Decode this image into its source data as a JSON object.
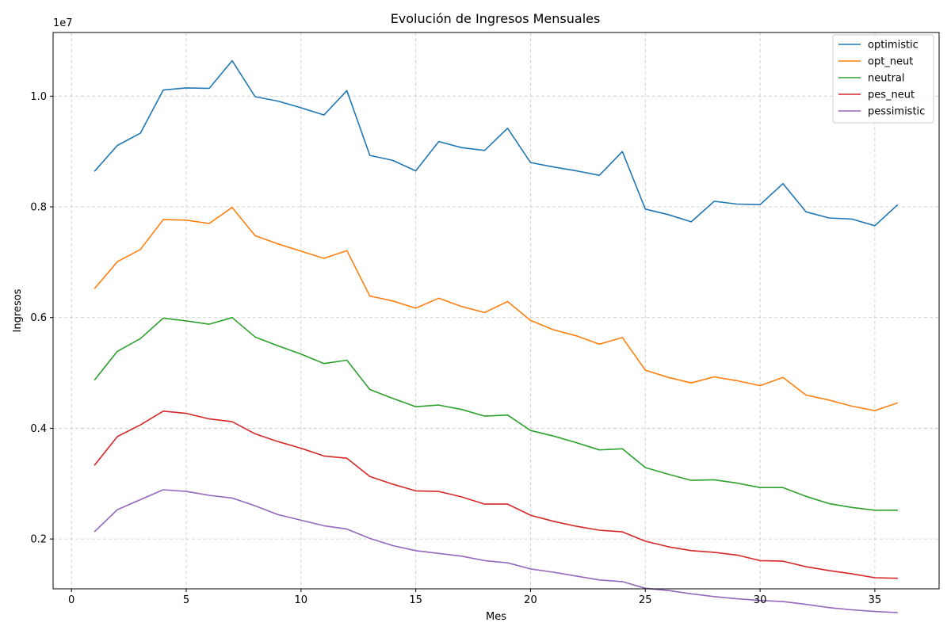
{
  "chart_data": {
    "type": "line",
    "title": "Evolución de Ingresos Mensuales",
    "xlabel": "Mes",
    "ylabel": "Ingresos",
    "y_offset_label": "1e7",
    "xlim": [
      -0.8,
      37.8
    ],
    "ylim": [
      1100000,
      11150000
    ],
    "xticks": [
      0,
      5,
      10,
      15,
      20,
      25,
      30,
      35
    ],
    "yticks": [
      2000000,
      4000000,
      6000000,
      8000000,
      10000000
    ],
    "ytick_labels": [
      "0.2",
      "0.4",
      "0.6",
      "0.8",
      "1.0"
    ],
    "grid": true,
    "legend_position": "top-right",
    "x": [
      1,
      2,
      3,
      4,
      5,
      6,
      7,
      8,
      9,
      10,
      11,
      12,
      13,
      14,
      15,
      16,
      17,
      18,
      19,
      20,
      21,
      22,
      23,
      24,
      25,
      26,
      27,
      28,
      29,
      30,
      31,
      32,
      33,
      34,
      35,
      36
    ],
    "series": [
      {
        "name": "optimistic",
        "color": "#1f77b4",
        "values": [
          8640000,
          9110000,
          9330000,
          10110000,
          10150000,
          10140000,
          10640000,
          9990000,
          9910000,
          9790000,
          9660000,
          10100000,
          8930000,
          8840000,
          8650000,
          9180000,
          9070000,
          9020000,
          9420000,
          8800000,
          8720000,
          8650000,
          8570000,
          9000000,
          7960000,
          7860000,
          7730000,
          8100000,
          8050000,
          8040000,
          8420000,
          7910000,
          7800000,
          7780000,
          7660000,
          8040000
        ]
      },
      {
        "name": "opt_neut",
        "color": "#ff7f0e",
        "values": [
          6520000,
          7010000,
          7230000,
          7770000,
          7760000,
          7700000,
          7990000,
          7480000,
          7330000,
          7200000,
          7070000,
          7210000,
          6390000,
          6300000,
          6170000,
          6350000,
          6200000,
          6090000,
          6290000,
          5950000,
          5780000,
          5670000,
          5520000,
          5640000,
          5050000,
          4920000,
          4820000,
          4930000,
          4860000,
          4770000,
          4920000,
          4600000,
          4510000,
          4400000,
          4320000,
          4460000
        ]
      },
      {
        "name": "neutral",
        "color": "#2ca02c",
        "values": [
          4870000,
          5390000,
          5620000,
          5990000,
          5940000,
          5880000,
          6000000,
          5650000,
          5490000,
          5340000,
          5170000,
          5230000,
          4700000,
          4540000,
          4390000,
          4420000,
          4340000,
          4220000,
          4240000,
          3960000,
          3860000,
          3740000,
          3610000,
          3630000,
          3290000,
          3170000,
          3060000,
          3070000,
          3010000,
          2930000,
          2930000,
          2770000,
          2640000,
          2570000,
          2520000,
          2520000
        ]
      },
      {
        "name": "pes_neut",
        "color": "#d62728",
        "values": [
          3330000,
          3850000,
          4060000,
          4310000,
          4270000,
          4170000,
          4120000,
          3900000,
          3760000,
          3640000,
          3500000,
          3460000,
          3130000,
          2990000,
          2870000,
          2860000,
          2760000,
          2630000,
          2630000,
          2430000,
          2320000,
          2230000,
          2160000,
          2130000,
          1960000,
          1860000,
          1790000,
          1760000,
          1710000,
          1610000,
          1600000,
          1500000,
          1430000,
          1370000,
          1300000,
          1290000
        ]
      },
      {
        "name": "pessimistic",
        "color": "#9467bd",
        "values": [
          2130000,
          2530000,
          2710000,
          2890000,
          2860000,
          2790000,
          2740000,
          2600000,
          2440000,
          2340000,
          2240000,
          2180000,
          2010000,
          1880000,
          1790000,
          1740000,
          1690000,
          1610000,
          1570000,
          1460000,
          1400000,
          1330000,
          1260000,
          1230000,
          1110000,
          1070000,
          1010000,
          960000,
          920000,
          890000,
          870000,
          820000,
          760000,
          720000,
          690000,
          670000
        ]
      }
    ]
  }
}
